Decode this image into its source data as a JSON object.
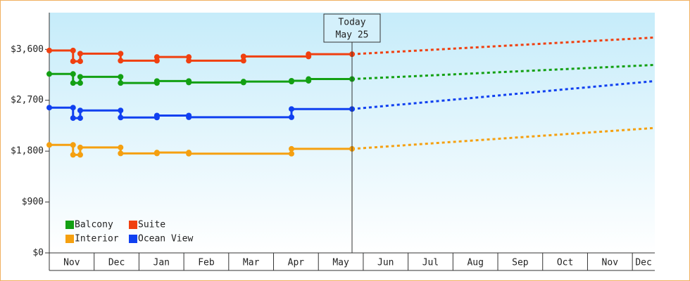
{
  "chart_data": {
    "type": "line",
    "ylim": [
      0,
      4250
    ],
    "yticks": [
      {
        "value": 0,
        "label": "$0"
      },
      {
        "value": 900,
        "label": "$900"
      },
      {
        "value": 1800,
        "label": "$1,800"
      },
      {
        "value": 2700,
        "label": "$2,700"
      },
      {
        "value": 3600,
        "label": "$3,600"
      }
    ],
    "xlim": [
      0,
      13.5
    ],
    "xticks": [
      {
        "value": 0,
        "label": "Nov"
      },
      {
        "value": 1,
        "label": "Dec"
      },
      {
        "value": 2,
        "label": "Jan"
      },
      {
        "value": 3,
        "label": "Feb"
      },
      {
        "value": 4,
        "label": "Mar"
      },
      {
        "value": 5,
        "label": "Apr"
      },
      {
        "value": 6,
        "label": "May"
      },
      {
        "value": 7,
        "label": "Jun"
      },
      {
        "value": 8,
        "label": "Jul"
      },
      {
        "value": 9,
        "label": "Aug"
      },
      {
        "value": 10,
        "label": "Sep"
      },
      {
        "value": 11,
        "label": "Oct"
      },
      {
        "value": 12,
        "label": "Nov"
      },
      {
        "value": 13,
        "label": "Dec"
      }
    ],
    "today": {
      "x": 6.75,
      "label": "Today",
      "date": "May 25"
    },
    "series": [
      {
        "name": "Balcony",
        "color": "#13a013",
        "x": [
          0,
          0.53,
          0.53,
          0.69,
          0.69,
          1.59,
          1.59,
          2.4,
          2.4,
          3.11,
          3.11,
          4.33,
          4.33,
          5.4,
          5.4,
          5.78,
          5.78,
          6.75
        ],
        "values": [
          3165,
          3165,
          3005,
          3005,
          3115,
          3115,
          3005,
          3005,
          3040,
          3040,
          3015,
          3015,
          3030,
          3030,
          3045,
          3045,
          3075,
          3075
        ],
        "projection": {
          "x": [
            6.75,
            13.5
          ],
          "values": [
            3075,
            3325
          ]
        }
      },
      {
        "name": "Suite",
        "color": "#f04010",
        "x": [
          0,
          0.53,
          0.53,
          0.69,
          0.69,
          1.59,
          1.59,
          2.4,
          2.4,
          3.11,
          3.11,
          4.33,
          4.33,
          5.78,
          5.78,
          6.75
        ],
        "values": [
          3580,
          3580,
          3390,
          3390,
          3525,
          3525,
          3400,
          3400,
          3465,
          3465,
          3400,
          3400,
          3475,
          3475,
          3515,
          3515
        ],
        "projection": {
          "x": [
            6.75,
            13.5
          ],
          "values": [
            3515,
            3810
          ]
        }
      },
      {
        "name": "Interior",
        "color": "#f5a010",
        "x": [
          0,
          0.53,
          0.53,
          0.69,
          0.69,
          1.59,
          1.59,
          2.4,
          2.4,
          3.11,
          3.11,
          5.4,
          5.4,
          6.75
        ],
        "values": [
          1910,
          1910,
          1735,
          1735,
          1865,
          1865,
          1760,
          1760,
          1775,
          1775,
          1755,
          1755,
          1840,
          1840
        ],
        "projection": {
          "x": [
            6.75,
            13.5
          ],
          "values": [
            1840,
            2210
          ]
        }
      },
      {
        "name": "Ocean View",
        "color": "#1040f0",
        "x": [
          0,
          0.53,
          0.53,
          0.69,
          0.69,
          1.59,
          1.59,
          2.4,
          2.4,
          3.11,
          3.11,
          5.4,
          5.4,
          6.75
        ],
        "values": [
          2570,
          2570,
          2385,
          2385,
          2520,
          2520,
          2395,
          2395,
          2430,
          2430,
          2400,
          2400,
          2545,
          2545
        ],
        "projection": {
          "x": [
            6.75,
            13.5
          ],
          "values": [
            2545,
            3040
          ]
        }
      }
    ]
  }
}
